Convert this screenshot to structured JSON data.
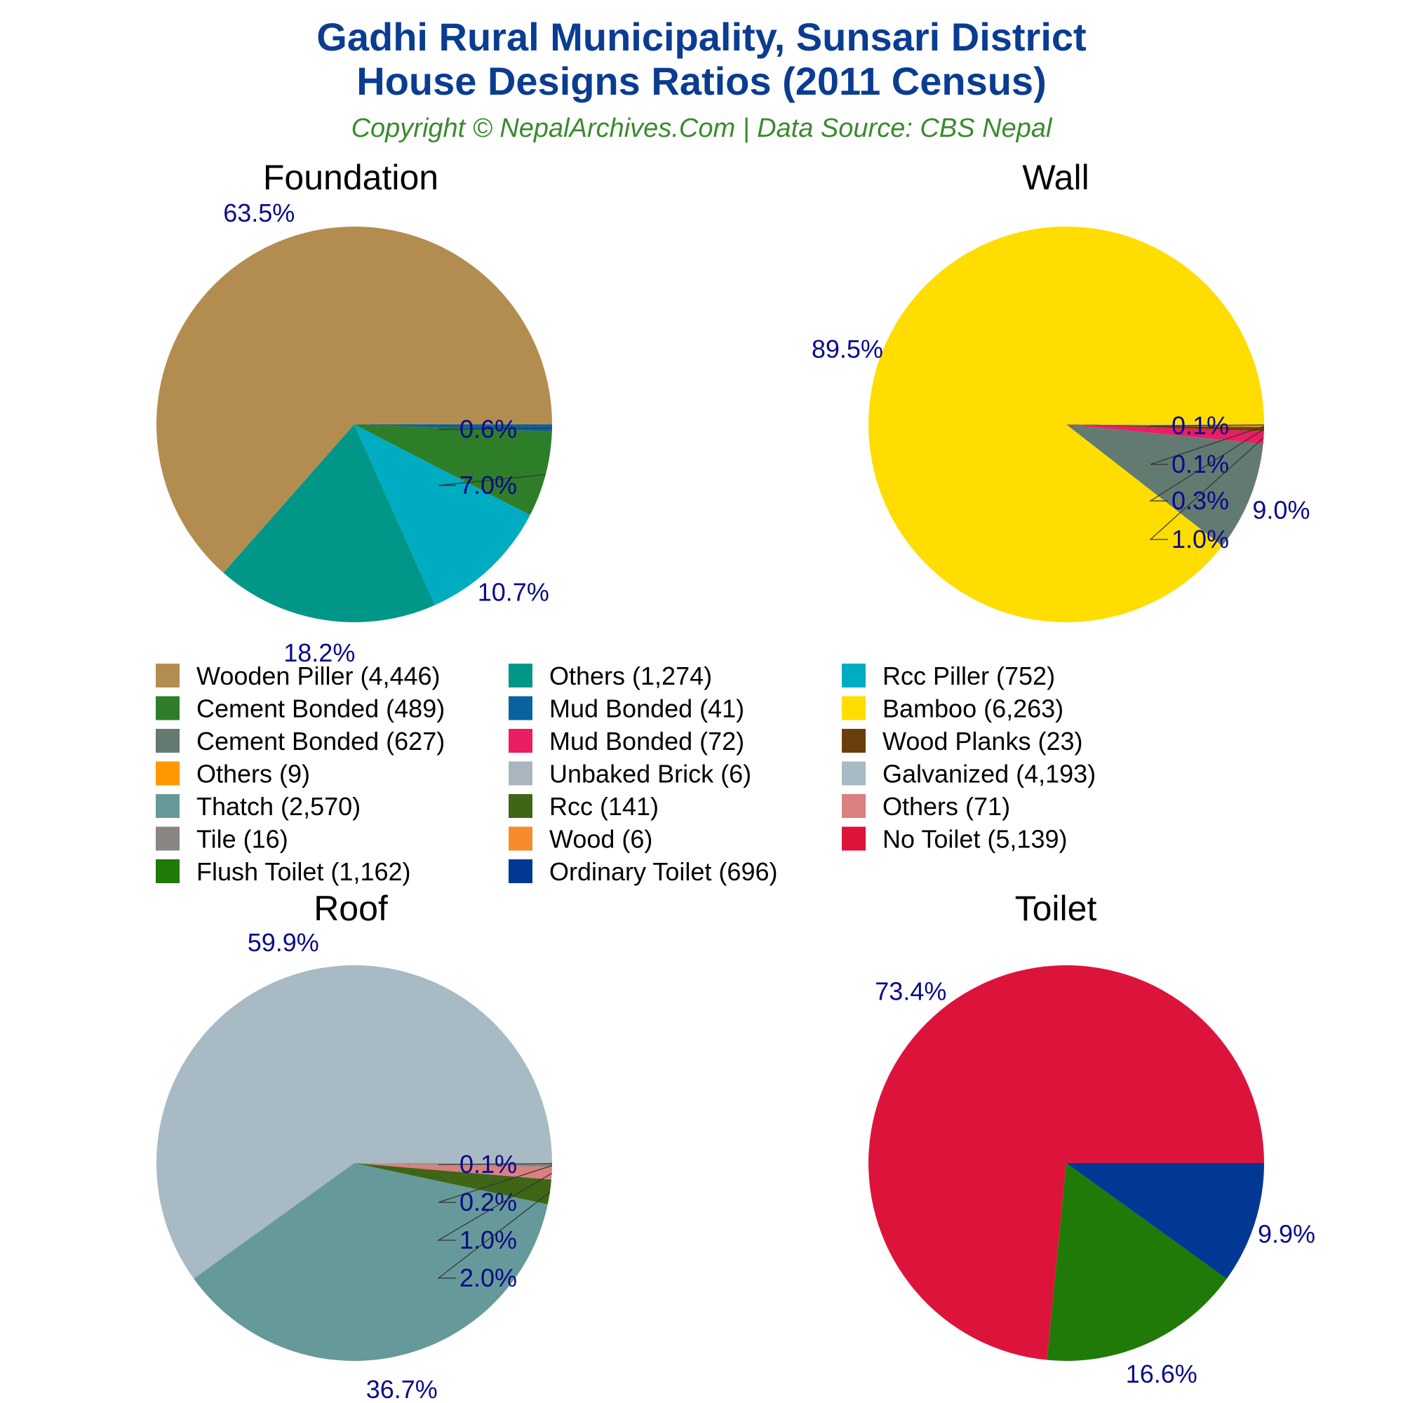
{
  "header": {
    "title_line1": "Gadhi Rural Municipality, Sunsari District",
    "title_line2": "House Designs Ratios (2011 Census)",
    "subtitle": "Copyright © NepalArchives.Com | Data Source: CBS Nepal"
  },
  "chart_data": [
    {
      "type": "pie",
      "title": "Foundation",
      "slices": [
        {
          "label": "Wooden Piller",
          "value": 4446,
          "percent_label": "63.5%",
          "color": "#b38d50"
        },
        {
          "label": "Others",
          "value": 1274,
          "percent_label": "18.2%",
          "color": "#009688"
        },
        {
          "label": "Rcc Piller",
          "value": 752,
          "percent_label": "10.7%",
          "color": "#00acc1"
        },
        {
          "label": "Cement Bonded",
          "value": 489,
          "percent_label": "7.0%",
          "color": "#2e7d28"
        },
        {
          "label": "Mud Bonded",
          "value": 41,
          "percent_label": "0.6%",
          "color": "#08639e"
        }
      ]
    },
    {
      "type": "pie",
      "title": "Wall",
      "slices": [
        {
          "label": "Bamboo",
          "value": 6263,
          "percent_label": "89.5%",
          "color": "#ffdd00"
        },
        {
          "label": "Cement Bonded",
          "value": 627,
          "percent_label": "9.0%",
          "color": "#637a70"
        },
        {
          "label": "Mud Bonded",
          "value": 72,
          "percent_label": "1.0%",
          "color": "#e91e63"
        },
        {
          "label": "Wood Planks",
          "value": 23,
          "percent_label": "0.3%",
          "color": "#6b3f0b"
        },
        {
          "label": "Others",
          "value": 9,
          "percent_label": "0.1%",
          "color": "#ff9800"
        },
        {
          "label": "Unbaked Brick",
          "value": 6,
          "percent_label": "0.1%",
          "color": "#a9b6bd"
        }
      ]
    },
    {
      "type": "pie",
      "title": "Roof",
      "slices": [
        {
          "label": "Galvanized",
          "value": 4193,
          "percent_label": "59.9%",
          "color": "#a8bac4"
        },
        {
          "label": "Thatch",
          "value": 2570,
          "percent_label": "36.7%",
          "color": "#669999"
        },
        {
          "label": "Rcc",
          "value": 141,
          "percent_label": "2.0%",
          "color": "#3e6616"
        },
        {
          "label": "Others",
          "value": 71,
          "percent_label": "1.0%",
          "color": "#d98080"
        },
        {
          "label": "Tile",
          "value": 16,
          "percent_label": "0.2%",
          "color": "#8a8583"
        },
        {
          "label": "Wood",
          "value": 6,
          "percent_label": "0.1%",
          "color": "#f78a2a"
        }
      ]
    },
    {
      "type": "pie",
      "title": "Toilet",
      "slices": [
        {
          "label": "No Toilet",
          "value": 5139,
          "percent_label": "73.4%",
          "color": "#dc143c"
        },
        {
          "label": "Flush Toilet",
          "value": 1162,
          "percent_label": "16.6%",
          "color": "#1f7a08"
        },
        {
          "label": "Ordinary Toilet",
          "value": 696,
          "percent_label": "9.9%",
          "color": "#003893"
        }
      ]
    }
  ],
  "legend": {
    "items": [
      {
        "label": "Wooden Piller (4,446)",
        "color": "#b38d50"
      },
      {
        "label": "Others (1,274)",
        "color": "#009688"
      },
      {
        "label": "Rcc Piller (752)",
        "color": "#00acc1"
      },
      {
        "label": "Cement Bonded (489)",
        "color": "#2e7d28"
      },
      {
        "label": "Mud Bonded (41)",
        "color": "#08639e"
      },
      {
        "label": "Bamboo (6,263)",
        "color": "#ffdd00"
      },
      {
        "label": "Cement Bonded (627)",
        "color": "#637a70"
      },
      {
        "label": "Mud Bonded (72)",
        "color": "#e91e63"
      },
      {
        "label": "Wood Planks (23)",
        "color": "#6b3f0b"
      },
      {
        "label": "Others (9)",
        "color": "#ff9800"
      },
      {
        "label": "Unbaked Brick (6)",
        "color": "#a9b6bd"
      },
      {
        "label": "Galvanized (4,193)",
        "color": "#a8bac4"
      },
      {
        "label": "Thatch (2,570)",
        "color": "#669999"
      },
      {
        "label": "Rcc (141)",
        "color": "#3e6616"
      },
      {
        "label": "Others (71)",
        "color": "#d98080"
      },
      {
        "label": "Tile (16)",
        "color": "#8a8583"
      },
      {
        "label": "Wood (6)",
        "color": "#f78a2a"
      },
      {
        "label": "No Toilet (5,139)",
        "color": "#dc143c"
      },
      {
        "label": "Flush Toilet (1,162)",
        "color": "#1f7a08"
      },
      {
        "label": "Ordinary Toilet (696)",
        "color": "#003893"
      }
    ]
  },
  "colors": {
    "title": "#0a3d91",
    "subtitle": "#3a8a2e",
    "percent_labels": "#0a0a8a"
  }
}
